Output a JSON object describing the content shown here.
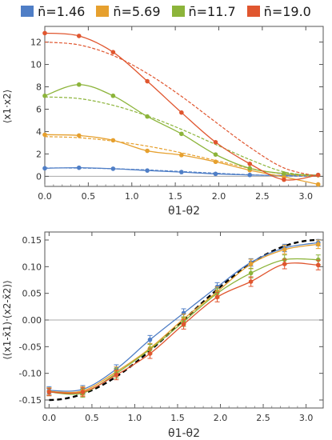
{
  "legend": {
    "items": [
      {
        "label": "n̄=1.46",
        "color": "#4f7ec6"
      },
      {
        "label": "n̄=5.69",
        "color": "#e6a02e"
      },
      {
        "label": "n̄=11.7",
        "color": "#8cb43a"
      },
      {
        "label": "n̄=19.0",
        "color": "#e0562f"
      }
    ]
  },
  "chart_data": [
    {
      "type": "line",
      "xlabel": "θ1-θ2",
      "ylabel": "⟨x1·x2⟩",
      "xlim": [
        0,
        3.2
      ],
      "ylim": [
        -0.9,
        13.4
      ],
      "xticks": [
        0.0,
        0.5,
        1.0,
        1.5,
        2.0,
        2.5,
        3.0
      ],
      "xtick_labels": [
        "0.0",
        "0.5",
        "1.0",
        "1.5",
        "2.0",
        "2.5",
        "3.0"
      ],
      "yticks": [
        0,
        2,
        4,
        6,
        8,
        10,
        12
      ],
      "ytick_labels": [
        "0",
        "2",
        "4",
        "6",
        "8",
        "10",
        "12"
      ],
      "grid": false,
      "x": [
        0.0,
        0.393,
        0.785,
        1.178,
        1.571,
        1.963,
        2.356,
        2.749,
        3.142
      ],
      "series": [
        {
          "name": "n̄=1.46",
          "color": "#4f7ec6",
          "values": [
            0.72,
            0.77,
            0.68,
            0.52,
            0.38,
            0.22,
            0.12,
            0.08,
            0.12
          ],
          "theory": [
            0.75,
            0.74,
            0.68,
            0.57,
            0.43,
            0.28,
            0.14,
            0.04,
            0.0
          ]
        },
        {
          "name": "n̄=5.69",
          "color": "#e6a02e",
          "values": [
            3.72,
            3.65,
            3.22,
            2.28,
            1.9,
            1.3,
            0.55,
            -0.05,
            -0.72
          ],
          "theory": [
            3.55,
            3.45,
            3.15,
            2.7,
            2.1,
            1.42,
            0.72,
            0.2,
            0.0
          ]
        },
        {
          "name": "n̄=11.7",
          "color": "#8cb43a",
          "values": [
            7.2,
            8.2,
            7.2,
            5.35,
            3.8,
            1.95,
            0.72,
            0.25,
            0.1
          ],
          "theory": [
            7.1,
            6.95,
            6.35,
            5.4,
            4.2,
            2.85,
            1.5,
            0.4,
            0.0
          ]
        },
        {
          "name": "n̄=19.0",
          "color": "#e0562f",
          "values": [
            12.8,
            12.55,
            11.1,
            8.5,
            5.7,
            3.05,
            1.12,
            -0.3,
            0.12
          ],
          "theory": [
            12.0,
            11.75,
            10.8,
            9.2,
            7.15,
            4.85,
            2.6,
            0.75,
            0.0
          ]
        }
      ]
    },
    {
      "type": "line",
      "xlabel": "θ1-θ2",
      "ylabel": "⟨(x1-x̄1)·(x2-x̄2)⟩",
      "xlim": [
        -0.05,
        3.2
      ],
      "ylim": [
        -0.165,
        0.165
      ],
      "xticks": [
        0.0,
        0.5,
        1.0,
        1.5,
        2.0,
        2.5,
        3.0
      ],
      "xtick_labels": [
        "0.0",
        "0.5",
        "1.0",
        "1.5",
        "2.0",
        "2.5",
        "3.0"
      ],
      "yticks": [
        -0.15,
        -0.1,
        -0.05,
        0.0,
        0.05,
        0.1,
        0.15
      ],
      "ytick_labels": [
        "-0.15",
        "-0.10",
        "-0.05",
        "0.00",
        "0.05",
        "0.10",
        "0.15"
      ],
      "grid": false,
      "x": [
        0.0,
        0.393,
        0.785,
        1.178,
        1.571,
        1.963,
        2.356,
        2.749,
        3.142
      ],
      "theory_curve": {
        "amplitude": 0.15,
        "style": "black-dashed",
        "formula": "-0.15*cos(x)"
      },
      "series": [
        {
          "name": "n̄=1.46",
          "color": "#4f7ec6",
          "values": [
            -0.132,
            -0.13,
            -0.092,
            -0.037,
            0.013,
            0.062,
            0.108,
            0.135,
            0.145
          ],
          "errors": [
            0.007,
            0.007,
            0.008,
            0.008,
            0.008,
            0.008,
            0.007,
            0.007,
            0.006
          ]
        },
        {
          "name": "n̄=5.69",
          "color": "#e6a02e",
          "values": [
            -0.134,
            -0.133,
            -0.097,
            -0.053,
            0.002,
            0.053,
            0.105,
            0.132,
            0.142
          ],
          "errors": [
            0.007,
            0.008,
            0.009,
            0.009,
            0.009,
            0.009,
            0.009,
            0.008,
            0.008
          ]
        },
        {
          "name": "n̄=11.7",
          "color": "#8cb43a",
          "values": [
            -0.135,
            -0.137,
            -0.1,
            -0.055,
            -0.003,
            0.05,
            0.088,
            0.113,
            0.113
          ],
          "errors": [
            0.007,
            0.008,
            0.009,
            0.009,
            0.009,
            0.009,
            0.009,
            0.009,
            0.009
          ]
        },
        {
          "name": "n̄=19.0",
          "color": "#e0562f",
          "values": [
            -0.135,
            -0.135,
            -0.103,
            -0.063,
            -0.008,
            0.043,
            0.072,
            0.105,
            0.103
          ],
          "errors": [
            0.007,
            0.008,
            0.009,
            0.009,
            0.009,
            0.009,
            0.009,
            0.009,
            0.009
          ]
        }
      ]
    }
  ]
}
